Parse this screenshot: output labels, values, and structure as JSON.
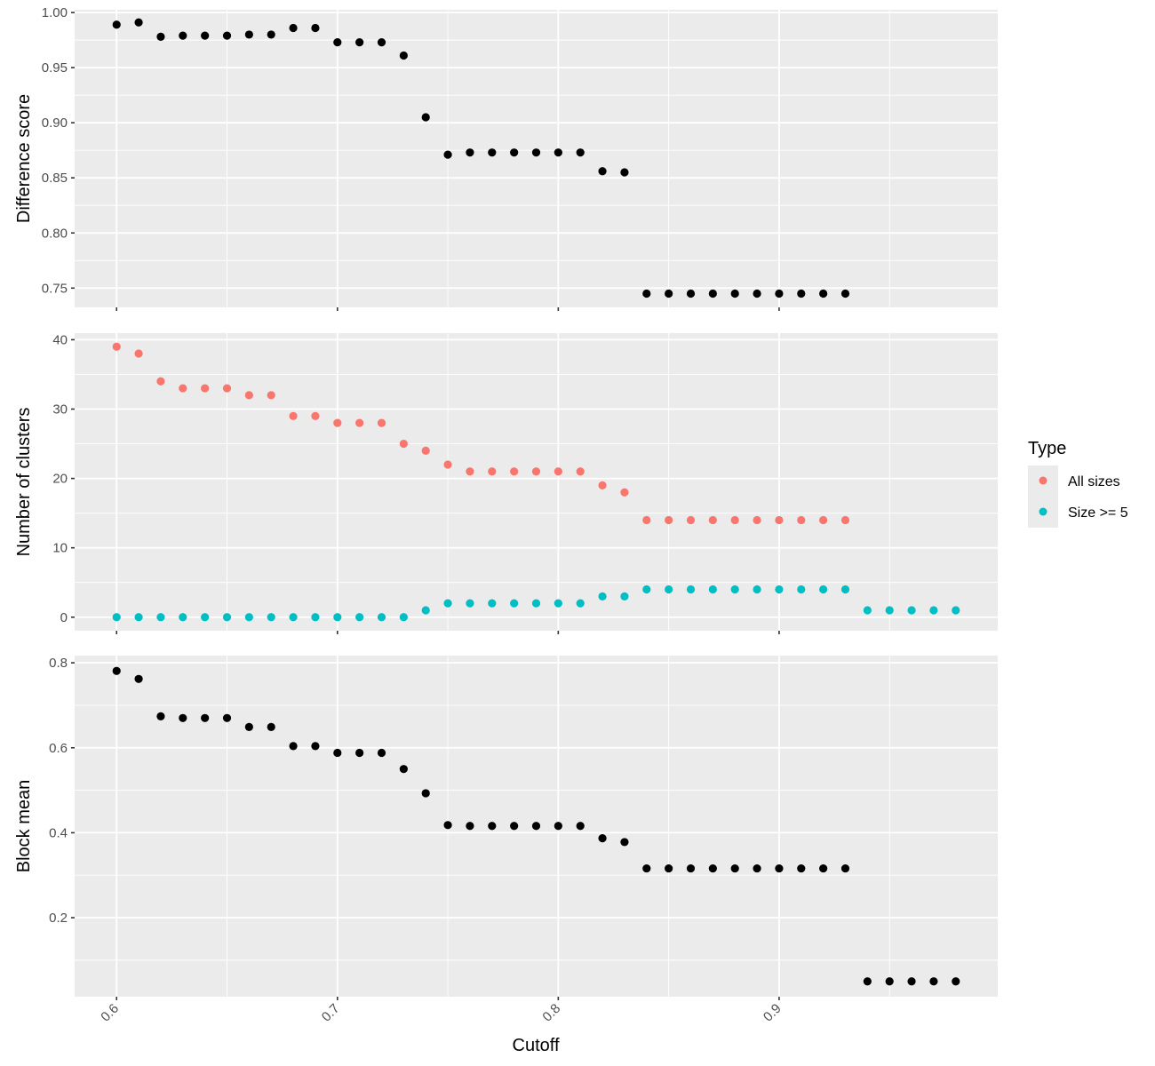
{
  "chart_data": {
    "type": "scatter",
    "xlabel": "Cutoff",
    "xlim": [
      0.581,
      0.999
    ],
    "xticks": [
      0.6,
      0.7,
      0.8,
      0.9
    ],
    "xtick_labels": [
      "0.6",
      "0.7",
      "0.8",
      "0.9"
    ],
    "x_tick_label_rotation": 45,
    "x": [
      0.6,
      0.61,
      0.62,
      0.63,
      0.64,
      0.65,
      0.66,
      0.67,
      0.68,
      0.69,
      0.7,
      0.71,
      0.72,
      0.73,
      0.74,
      0.75,
      0.76,
      0.77,
      0.78,
      0.79,
      0.8,
      0.81,
      0.82,
      0.83,
      0.84,
      0.85,
      0.86,
      0.87,
      0.88,
      0.89,
      0.9,
      0.91,
      0.92,
      0.93,
      0.94,
      0.95,
      0.96,
      0.97,
      0.98
    ],
    "grid": true,
    "panels": [
      {
        "ylabel": "Difference score",
        "ylim": [
          0.7325,
          1.0025
        ],
        "yticks": [
          0.75,
          0.8,
          0.85,
          0.9,
          0.95,
          1.0
        ],
        "ytick_labels": [
          "0.75",
          "0.80",
          "0.85",
          "0.90",
          "0.95",
          "1.00"
        ],
        "series": [
          {
            "color": "#000000",
            "values": [
              0.989,
              0.991,
              0.978,
              0.979,
              0.979,
              0.979,
              0.98,
              0.98,
              0.986,
              0.986,
              0.973,
              0.973,
              0.973,
              0.961,
              0.905,
              0.871,
              0.873,
              0.873,
              0.873,
              0.873,
              0.873,
              0.873,
              0.856,
              0.855,
              0.745,
              0.745,
              0.745,
              0.745,
              0.745,
              0.745,
              0.745,
              0.745,
              0.745,
              0.745,
              null,
              null,
              null,
              null,
              null
            ]
          }
        ]
      },
      {
        "ylabel": "Number of clusters",
        "ylim": [
          -1.95,
          40.95
        ],
        "yticks": [
          0,
          10,
          20,
          30,
          40
        ],
        "ytick_labels": [
          "0",
          "10",
          "20",
          "30",
          "40"
        ],
        "series": [
          {
            "name": "All sizes",
            "color": "#F8766D",
            "values": [
              39,
              38,
              34,
              33,
              33,
              33,
              32,
              32,
              29,
              29,
              28,
              28,
              28,
              25,
              24,
              22,
              21,
              21,
              21,
              21,
              21,
              21,
              19,
              18,
              14,
              14,
              14,
              14,
              14,
              14,
              14,
              14,
              14,
              14,
              null,
              null,
              null,
              null,
              null
            ]
          },
          {
            "name": "Size >= 5",
            "color": "#00BFC4",
            "values": [
              0,
              0,
              0,
              0,
              0,
              0,
              0,
              0,
              0,
              0,
              0,
              0,
              0,
              0,
              1,
              2,
              2,
              2,
              2,
              2,
              2,
              2,
              3,
              3,
              4,
              4,
              4,
              4,
              4,
              4,
              4,
              4,
              4,
              4,
              1,
              1,
              1,
              1,
              1
            ]
          }
        ]
      },
      {
        "ylabel": "Block mean",
        "ylim": [
          0.014,
          0.817
        ],
        "yticks": [
          0.2,
          0.4,
          0.6,
          0.8
        ],
        "ytick_labels": [
          "0.2",
          "0.4",
          "0.6",
          "0.8"
        ],
        "series": [
          {
            "color": "#000000",
            "values": [
              0.781,
              0.762,
              0.674,
              0.67,
              0.67,
              0.67,
              0.649,
              0.649,
              0.604,
              0.604,
              0.588,
              0.588,
              0.588,
              0.55,
              0.493,
              0.418,
              0.416,
              0.416,
              0.416,
              0.416,
              0.416,
              0.416,
              0.387,
              0.378,
              0.316,
              0.316,
              0.316,
              0.316,
              0.316,
              0.316,
              0.316,
              0.316,
              0.316,
              0.316,
              0.05,
              0.05,
              0.05,
              0.05,
              0.05
            ]
          }
        ]
      }
    ],
    "legend": {
      "title": "Type",
      "position": "right",
      "items": [
        {
          "label": "All sizes",
          "color": "#F8766D"
        },
        {
          "label": "Size >= 5",
          "color": "#00BFC4"
        }
      ]
    }
  }
}
